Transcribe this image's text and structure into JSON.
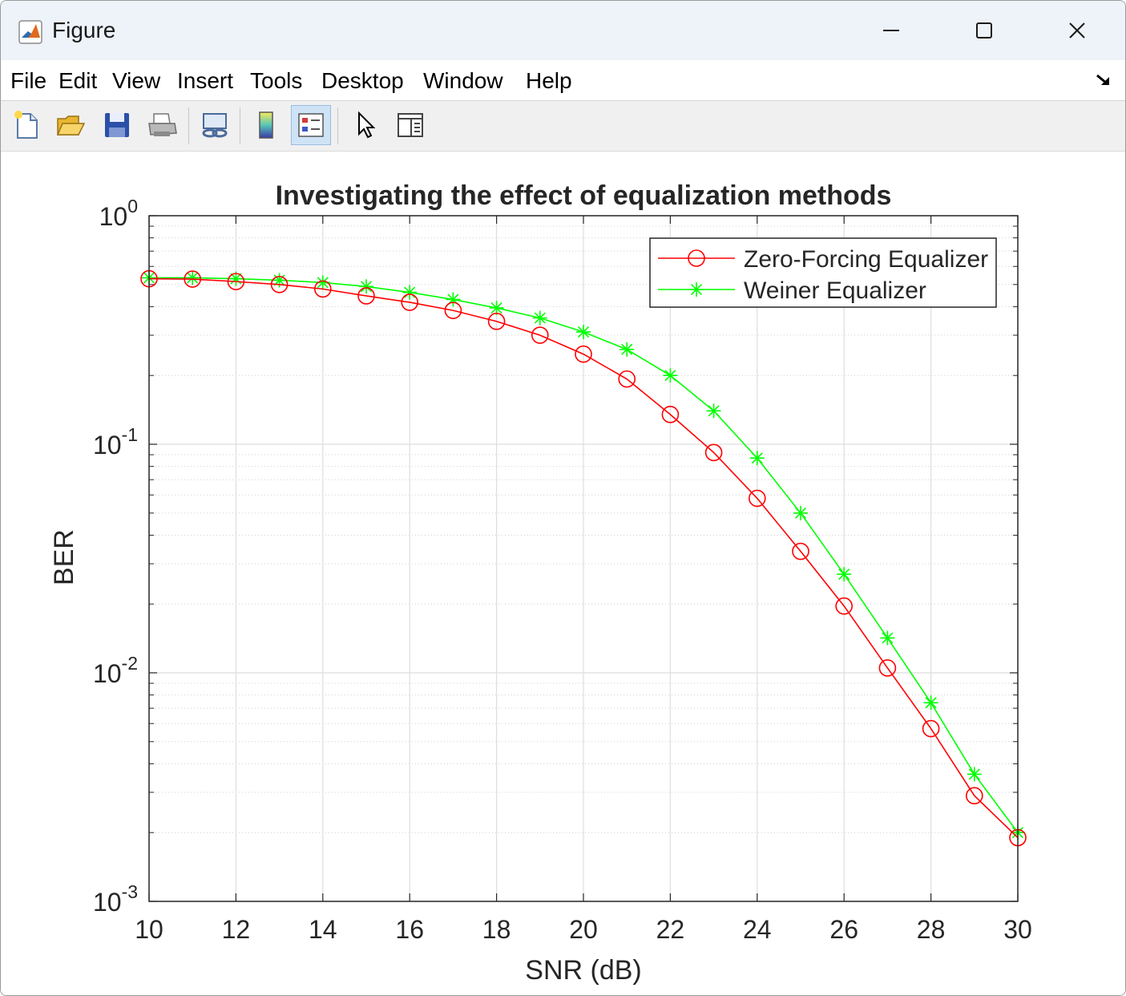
{
  "window": {
    "title": "Figure"
  },
  "menu": {
    "items": [
      "File",
      "Edit",
      "View",
      "Insert",
      "Tools",
      "Desktop",
      "Window",
      "Help"
    ]
  },
  "toolbar": {
    "tools": [
      "new-figure-icon",
      "open-file-icon",
      "save-icon",
      "print-icon",
      "link-plot-icon",
      "colorbar-icon",
      "legend-icon",
      "pointer-icon",
      "property-inspector-icon"
    ]
  },
  "chart_data": {
    "type": "line",
    "title": "Investigating the effect of equalization methods",
    "xlabel": "SNR (dB)",
    "ylabel": "BER",
    "xlim": [
      10,
      30
    ],
    "ylim": [
      0.001,
      1
    ],
    "yscale": "log",
    "grid": true,
    "minor_grid": true,
    "legend_position": "top-right",
    "x_ticks": [
      "10",
      "12",
      "14",
      "16",
      "18",
      "20",
      "22",
      "24",
      "26",
      "28",
      "30"
    ],
    "y_ticks": [
      {
        "base": "10",
        "exp": "0"
      },
      {
        "base": "10",
        "exp": "-1"
      },
      {
        "base": "10",
        "exp": "-2"
      },
      {
        "base": "10",
        "exp": "-3"
      }
    ],
    "x": [
      10,
      11,
      12,
      13,
      14,
      15,
      16,
      17,
      18,
      19,
      20,
      21,
      22,
      23,
      24,
      25,
      26,
      27,
      28,
      29,
      30
    ],
    "series": [
      {
        "name": "Zero-Forcing Equalizer",
        "color": "#ff0000",
        "marker": "circle",
        "values": [
          0.53,
          0.528,
          0.515,
          0.5,
          0.478,
          0.446,
          0.418,
          0.385,
          0.345,
          0.3,
          0.248,
          0.193,
          0.135,
          0.092,
          0.058,
          0.034,
          0.0196,
          0.0105,
          0.0057,
          0.0029,
          0.0019
        ]
      },
      {
        "name": "Weiner Equalizer",
        "color": "#00ff00",
        "marker": "star",
        "values": [
          0.535,
          0.535,
          0.53,
          0.522,
          0.51,
          0.49,
          0.462,
          0.43,
          0.395,
          0.357,
          0.31,
          0.26,
          0.2,
          0.14,
          0.087,
          0.05,
          0.027,
          0.0142,
          0.0074,
          0.0036,
          0.002
        ]
      }
    ]
  }
}
